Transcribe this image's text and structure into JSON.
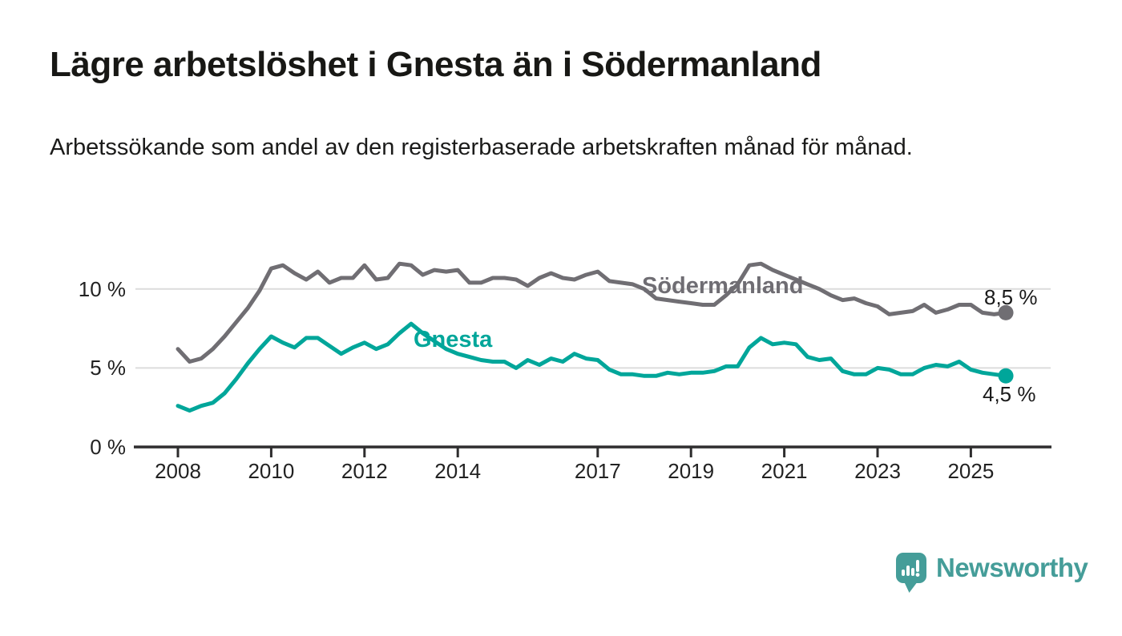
{
  "header": {
    "title": "Lägre arbetslöshet i Gnesta än i Södermanland",
    "subtitle": "Arbetssökande som andel av den registerbaserade arbetskraften månad för månad."
  },
  "footer": {
    "brand": "Newsworthy",
    "icon": "chart-bubble-icon",
    "brand_color": "#459d99"
  },
  "colors": {
    "sodermanland_line": "#706e73",
    "gnesta_line": "#00a69a",
    "grid": "#dcdcdc",
    "axis": "#2e2d2e",
    "text": "#1a1a1a"
  },
  "chart_data": {
    "type": "line",
    "title": "Lägre arbetslöshet i Gnesta än i Södermanland",
    "subtitle": "Arbetssökande som andel av den registerbaserade arbetskraften månad för månad.",
    "xlabel": "",
    "ylabel": "",
    "grid": "horizontal",
    "legend_position": "inline-labels",
    "xlim": [
      2008,
      2025.75
    ],
    "ylim": [
      0,
      12.5
    ],
    "x_ticks": [
      "2008",
      "2010",
      "2012",
      "2014",
      "2017",
      "2019",
      "2021",
      "2023",
      "2025"
    ],
    "y_ticks": [
      {
        "value": 0,
        "label": "0 %"
      },
      {
        "value": 5,
        "label": "5 %"
      },
      {
        "value": 10,
        "label": "10 %"
      }
    ],
    "x": [
      2008,
      2008.25,
      2008.5,
      2008.75,
      2009,
      2009.25,
      2009.5,
      2009.75,
      2010,
      2010.25,
      2010.5,
      2010.75,
      2011,
      2011.25,
      2011.5,
      2011.75,
      2012,
      2012.25,
      2012.5,
      2012.75,
      2013,
      2013.25,
      2013.5,
      2013.75,
      2014,
      2014.25,
      2014.5,
      2014.75,
      2015,
      2015.25,
      2015.5,
      2015.75,
      2016,
      2016.25,
      2016.5,
      2016.75,
      2017,
      2017.25,
      2017.5,
      2017.75,
      2018,
      2018.25,
      2018.5,
      2018.75,
      2019,
      2019.25,
      2019.5,
      2019.75,
      2020,
      2020.25,
      2020.5,
      2020.75,
      2021,
      2021.25,
      2021.5,
      2021.75,
      2022,
      2022.25,
      2022.5,
      2022.75,
      2023,
      2023.25,
      2023.5,
      2023.75,
      2024,
      2024.25,
      2024.5,
      2024.75,
      2025,
      2025.25,
      2025.5,
      2025.75
    ],
    "series": [
      {
        "name": "Södermanland",
        "slug": "sodermanland",
        "color": "#706e73",
        "end_label": "8,5 %",
        "last_value": 8.5,
        "values": [
          6.2,
          5.4,
          5.6,
          6.2,
          7.0,
          7.9,
          8.8,
          9.9,
          11.3,
          11.5,
          11.0,
          10.6,
          11.1,
          10.4,
          10.7,
          10.7,
          11.5,
          10.6,
          10.7,
          11.6,
          11.5,
          10.9,
          11.2,
          11.1,
          11.2,
          10.4,
          10.4,
          10.7,
          10.7,
          10.6,
          10.2,
          10.7,
          11.0,
          10.7,
          10.6,
          10.9,
          11.1,
          10.5,
          10.4,
          10.3,
          10.0,
          9.4,
          9.3,
          9.2,
          9.1,
          9.0,
          9.0,
          9.6,
          10.3,
          11.5,
          11.6,
          11.2,
          10.9,
          10.6,
          10.3,
          10.0,
          9.6,
          9.3,
          9.4,
          9.1,
          8.9,
          8.4,
          8.5,
          8.6,
          9.0,
          8.5,
          8.7,
          9.0,
          9.0,
          8.5,
          8.4,
          8.5
        ]
      },
      {
        "name": "Gnesta",
        "slug": "gnesta",
        "color": "#00a69a",
        "end_label": "4,5 %",
        "last_value": 4.5,
        "values": [
          2.6,
          2.3,
          2.6,
          2.8,
          3.4,
          4.3,
          5.3,
          6.2,
          7.0,
          6.6,
          6.3,
          6.9,
          6.9,
          6.4,
          5.9,
          6.3,
          6.6,
          6.2,
          6.5,
          7.2,
          7.8,
          7.2,
          6.7,
          6.2,
          5.9,
          5.7,
          5.5,
          5.4,
          5.4,
          5.0,
          5.5,
          5.2,
          5.6,
          5.4,
          5.9,
          5.6,
          5.5,
          4.9,
          4.6,
          4.6,
          4.5,
          4.5,
          4.7,
          4.6,
          4.7,
          4.7,
          4.8,
          5.1,
          5.1,
          6.3,
          6.9,
          6.5,
          6.6,
          6.5,
          5.7,
          5.5,
          5.6,
          4.8,
          4.6,
          4.6,
          5.0,
          4.9,
          4.6,
          4.6,
          5.0,
          5.2,
          5.1,
          5.4,
          4.9,
          4.7,
          4.6,
          4.5
        ]
      }
    ]
  }
}
